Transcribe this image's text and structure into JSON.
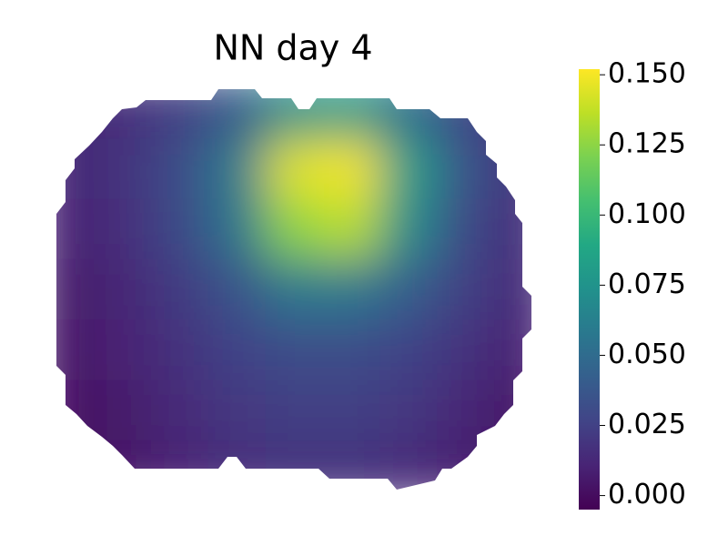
{
  "chart_data": {
    "type": "heatmap",
    "title": "NN day 4",
    "colormap": "viridis",
    "values": [
      [
        0.012,
        0.016,
        0.024,
        0.04,
        0.075,
        0.08,
        0.052,
        0.028,
        0.016
      ],
      [
        0.012,
        0.018,
        0.032,
        0.06,
        0.145,
        0.15,
        0.08,
        0.036,
        0.018
      ],
      [
        0.01,
        0.016,
        0.03,
        0.055,
        0.125,
        0.135,
        0.07,
        0.03,
        0.016
      ],
      [
        0.006,
        0.012,
        0.022,
        0.036,
        0.058,
        0.058,
        0.042,
        0.024,
        0.014
      ],
      [
        0.004,
        0.01,
        0.018,
        0.026,
        0.032,
        0.032,
        0.026,
        0.018,
        0.01
      ],
      [
        0.002,
        0.006,
        0.014,
        0.02,
        0.024,
        0.024,
        0.02,
        0.012,
        0.004
      ],
      [
        0.001,
        0.004,
        0.01,
        0.016,
        0.018,
        0.018,
        0.014,
        0.008,
        0.002
      ]
    ],
    "clim": [
      -0.005,
      0.152
    ],
    "cticks": [
      {
        "value": 0,
        "label": "0.000"
      },
      0.025,
      {
        "value": 0.05,
        "label": "0.050"
      },
      0.075,
      {
        "value": 0.1,
        "label": "0.100"
      },
      0.125,
      {
        "value": 0.15,
        "label": "0.150"
      }
    ]
  }
}
